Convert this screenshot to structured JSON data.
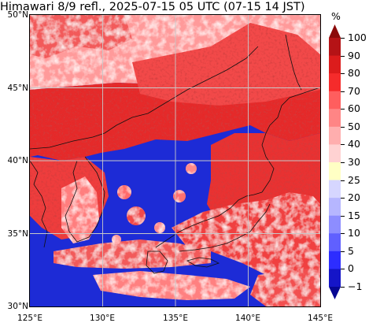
{
  "title": "Himawari 8/9 refl., 2025-07-15 05 UTC (07-15 14 JST)",
  "lat_labels": [
    "50°N",
    "45°N",
    "40°N",
    "35°N",
    "30°N"
  ],
  "lon_labels": [
    "125°E",
    "130°E",
    "135°E",
    "140°E",
    "145°E"
  ],
  "colorbar": {
    "unit": "%",
    "labels": [
      "100",
      "90",
      "80",
      "70",
      "60",
      "50",
      "40",
      "30",
      "25",
      "20",
      "15",
      "10",
      "5",
      "0",
      "−1"
    ],
    "colors": [
      "#8b0a0a",
      "#b51316",
      "#dc1c1c",
      "#f52b2b",
      "#ff5e5e",
      "#ff8585",
      "#ffaeae",
      "#ffd2d2",
      "#ffffc4",
      "#d6d6ff",
      "#b6b6ff",
      "#8d8dff",
      "#6060ff",
      "#2d2dff",
      "#1515c8",
      "#070793"
    ]
  },
  "map_colors": {
    "clear_sky": "#1d2bd6",
    "cloud_low": "#ff9a9a",
    "cloud_mid": "#f24a4a",
    "cloud_high": "#e02020",
    "coastline": "#111111",
    "grid": "#c8c8c8"
  }
}
